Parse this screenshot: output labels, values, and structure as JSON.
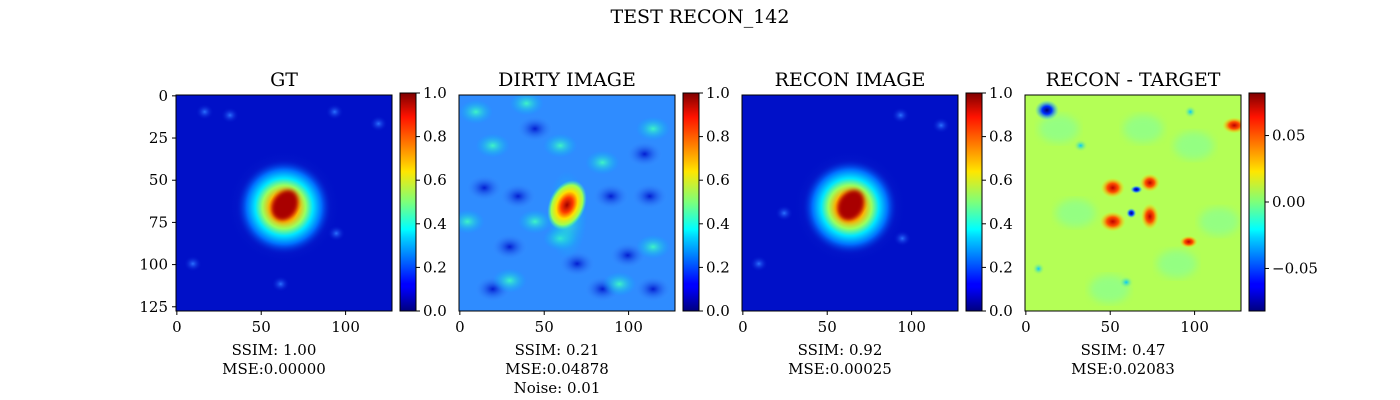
{
  "chart_data": {
    "type": "heatmap",
    "title": "TEST RECON_142",
    "colormap": "jet",
    "panels": [
      {
        "title": "GT",
        "xticks": [
          0,
          50,
          100
        ],
        "yticks": [
          0,
          25,
          50,
          75,
          100,
          125
        ],
        "extent": [
          0,
          128
        ],
        "colorbar": {
          "vmin": 0.0,
          "vmax": 1.0,
          "ticks": [
            "0.0",
            "0.2",
            "0.4",
            "0.6",
            "0.8",
            "1.0"
          ],
          "tick_values": [
            0,
            0.2,
            0.4,
            0.6,
            0.8,
            1.0
          ]
        },
        "caption": [
          "SSIM: 1.00",
          "MSE:0.00000"
        ]
      },
      {
        "title": "DIRTY IMAGE",
        "xticks": [
          0,
          50,
          100
        ],
        "extent": [
          0,
          128
        ],
        "colorbar": {
          "vmin": 0.0,
          "vmax": 1.0,
          "ticks": [
            "0.0",
            "0.2",
            "0.4",
            "0.6",
            "0.8",
            "1.0"
          ],
          "tick_values": [
            0,
            0.2,
            0.4,
            0.6,
            0.8,
            1.0
          ]
        },
        "caption": [
          "SSIM: 0.21",
          "MSE:0.04878",
          "Noise: 0.01"
        ]
      },
      {
        "title": "RECON IMAGE",
        "xticks": [
          0,
          50,
          100
        ],
        "extent": [
          0,
          128
        ],
        "colorbar": {
          "vmin": 0.0,
          "vmax": 1.0,
          "ticks": [
            "0.0",
            "0.2",
            "0.4",
            "0.6",
            "0.8",
            "1.0"
          ],
          "tick_values": [
            0,
            0.2,
            0.4,
            0.6,
            0.8,
            1.0
          ]
        },
        "caption": [
          "SSIM: 0.92",
          "MSE:0.00025"
        ]
      },
      {
        "title": "RECON - TARGET",
        "xticks": [
          0,
          50,
          100
        ],
        "extent": [
          0,
          128
        ],
        "colorbar": {
          "vmin": -0.082,
          "vmax": 0.082,
          "ticks": [
            "−0.05",
            "0.00",
            "0.05"
          ],
          "tick_values": [
            -0.05,
            0.0,
            0.05
          ]
        },
        "caption": [
          "SSIM: 0.47",
          "MSE:0.02083"
        ]
      }
    ]
  }
}
